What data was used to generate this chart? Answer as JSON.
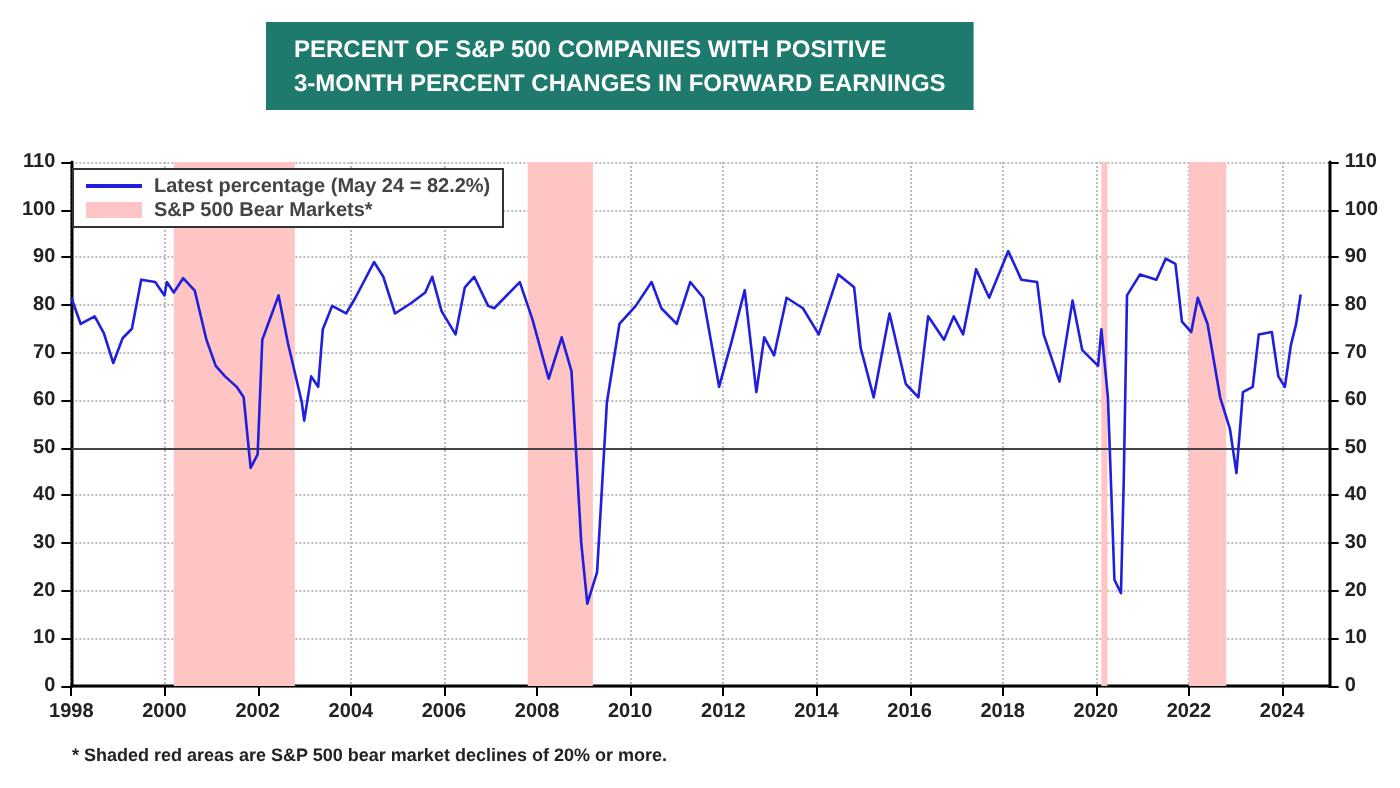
{
  "chart_data": {
    "type": "line",
    "title": "PERCENT OF S&P 500 COMPANIES WITH POSITIVE\n3-MONTH PERCENT CHANGES IN FORWARD EARNINGS",
    "x": [
      1998.0,
      1998.2,
      1998.5,
      1998.7,
      1998.9,
      1999.1,
      1999.3,
      1999.5,
      1999.8,
      2000.0,
      2000.05,
      2000.2,
      2000.4,
      2000.65,
      2000.9,
      2001.1,
      2001.3,
      2001.55,
      2001.7,
      2001.85,
      2002.0,
      2002.1,
      2002.3,
      2002.45,
      2002.65,
      2002.95,
      2003.0,
      2003.15,
      2003.3,
      2003.4,
      2003.6,
      2003.9,
      2004.1,
      2004.5,
      2004.7,
      2004.95,
      2005.3,
      2005.6,
      2005.75,
      2005.95,
      2006.25,
      2006.45,
      2006.65,
      2006.95,
      2007.08,
      2007.63,
      2007.9,
      2008.25,
      2008.53,
      2008.74,
      2008.95,
      2009.08,
      2009.29,
      2009.5,
      2009.77,
      2010.12,
      2010.46,
      2010.67,
      2011.0,
      2011.29,
      2011.57,
      2011.91,
      2012.19,
      2012.46,
      2012.71,
      2012.88,
      2013.09,
      2013.36,
      2013.71,
      2014.05,
      2014.47,
      2014.81,
      2014.95,
      2015.23,
      2015.57,
      2015.92,
      2016.19,
      2016.4,
      2016.74,
      2016.95,
      2017.15,
      2017.43,
      2017.71,
      2018.12,
      2018.4,
      2018.74,
      2018.88,
      2019.22,
      2019.5,
      2019.71,
      2020.05,
      2020.12,
      2020.26,
      2020.4,
      2020.54,
      2020.6,
      2020.67,
      2020.95,
      2021.3,
      2021.5,
      2021.71,
      2021.85,
      2022.05,
      2022.19,
      2022.4,
      2022.67,
      2022.88,
      2023.02,
      2023.16,
      2023.37,
      2023.5,
      2023.78,
      2023.92,
      2024.06,
      2024.19,
      2024.3,
      2024.4
    ],
    "series": [
      {
        "name": "Latest percentage (May 24 = 82.2%)",
        "color": "#1f1fdd",
        "values": [
          81.5,
          76,
          77.6,
          74,
          67.8,
          73,
          75,
          85.3,
          84.8,
          82,
          84.8,
          82.6,
          85.6,
          83,
          72.7,
          67.2,
          65,
          62.8,
          60.6,
          45.8,
          48.6,
          72.7,
          78,
          82,
          72,
          59.5,
          55.7,
          65,
          62.8,
          74.9,
          79.8,
          78.2,
          81.5,
          89,
          85.9,
          78.2,
          80.4,
          82.6,
          85.9,
          78.7,
          73.8,
          83.7,
          85.9,
          79.8,
          79.3,
          84.8,
          77,
          64.5,
          73.2,
          66.1,
          30,
          17.3,
          23.9,
          59.5,
          76,
          79.8,
          84.8,
          79.3,
          76,
          84.8,
          81.5,
          62.8,
          72.7,
          83.1,
          61.7,
          73.2,
          69.4,
          81.5,
          79.3,
          73.8,
          86.4,
          83.7,
          71,
          60.6,
          78.2,
          63.4,
          60.6,
          77.6,
          72.7,
          77.6,
          73.8,
          87.5,
          81.5,
          91.3,
          85.3,
          84.8,
          73.8,
          63.9,
          80.9,
          70.5,
          67.2,
          74.9,
          60.6,
          22.3,
          19.5,
          43,
          82,
          86.4,
          85.3,
          89.7,
          88.6,
          76.5,
          74.3,
          81.5,
          76,
          60.6,
          54,
          44.7,
          61.7,
          62.8,
          73.8,
          74.3,
          65,
          62.8,
          71.6,
          75.9,
          82.2
        ]
      }
    ],
    "xlim": [
      1998,
      2025
    ],
    "xticks": [
      1998,
      2000,
      2002,
      2004,
      2006,
      2008,
      2010,
      2012,
      2014,
      2016,
      2018,
      2020,
      2022,
      2024
    ],
    "ylim": [
      0,
      110
    ],
    "yticks": [
      0,
      10,
      20,
      30,
      40,
      50,
      60,
      70,
      80,
      90,
      100,
      110
    ],
    "y2lim": [
      0,
      110
    ],
    "y2ticks": [
      0,
      10,
      20,
      30,
      40,
      50,
      60,
      70,
      80,
      90,
      100,
      110
    ],
    "ref_lines": [
      {
        "axis": "y",
        "value": 50,
        "color": "#444444"
      }
    ],
    "bands": [
      {
        "axis": "x",
        "from": 2000.2,
        "to": 2002.8,
        "label": "S&P 500 Bear Markets*",
        "color": "#ffc4c4"
      },
      {
        "axis": "x",
        "from": 2007.8,
        "to": 2009.2,
        "color": "#ffc4c4"
      },
      {
        "axis": "x",
        "from": 2020.12,
        "to": 2020.25,
        "color": "#ffc4c4"
      },
      {
        "axis": "x",
        "from": 2022.0,
        "to": 2022.8,
        "color": "#ffc4c4"
      }
    ],
    "annotations": [
      "* Shaded red areas are S&P 500 bear market declines of 20% or more."
    ],
    "grid": true,
    "legend": "top left",
    "marker": "none",
    "line_style": "solid"
  }
}
